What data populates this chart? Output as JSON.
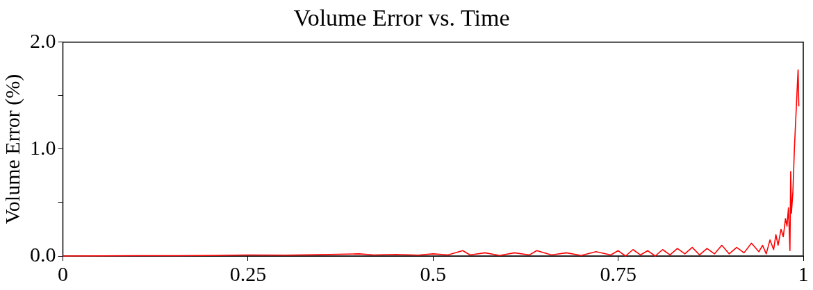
{
  "chart_data": {
    "type": "line",
    "title": "Volume Error vs. Time",
    "ylabel": "Volume Error (%)",
    "xlim": [
      0,
      1
    ],
    "xticks": [
      0,
      0.25,
      0.5,
      0.75,
      1
    ],
    "ylim": [
      0,
      2
    ],
    "yticks": [
      {
        "value": 0,
        "label": "0.0"
      },
      {
        "value": 0.5,
        "label": null
      },
      {
        "value": 1,
        "label": "1.0"
      },
      {
        "value": 1.5,
        "label": null
      },
      {
        "value": 2,
        "label": "2.0"
      }
    ],
    "grid": false,
    "legend": false,
    "marker": "none",
    "line_style": "solid",
    "series": [
      {
        "color": "#ff0000",
        "x": [
          0,
          0.05,
          0.1,
          0.15,
          0.2,
          0.25,
          0.3,
          0.35,
          0.4,
          0.42,
          0.45,
          0.48,
          0.5,
          0.52,
          0.54,
          0.55,
          0.57,
          0.59,
          0.61,
          0.63,
          0.64,
          0.66,
          0.68,
          0.7,
          0.72,
          0.74,
          0.75,
          0.76,
          0.77,
          0.78,
          0.79,
          0.8,
          0.81,
          0.82,
          0.83,
          0.84,
          0.85,
          0.86,
          0.87,
          0.88,
          0.89,
          0.9,
          0.91,
          0.92,
          0.93,
          0.94,
          0.945,
          0.95,
          0.955,
          0.96,
          0.963,
          0.966,
          0.97,
          0.973,
          0.976,
          0.978,
          0.98,
          0.982,
          0.983,
          0.984,
          0.986,
          0.988,
          0.99,
          0.992,
          0.993,
          0.994
        ],
        "values": [
          0,
          0.002,
          0.003,
          0.003,
          0.005,
          0.01,
          0.008,
          0.012,
          0.02,
          0.01,
          0.015,
          0.008,
          0.02,
          0.01,
          0.05,
          0.01,
          0.03,
          0.005,
          0.03,
          0.01,
          0.05,
          0.01,
          0.03,
          0.005,
          0.04,
          0.01,
          0.05,
          0,
          0.06,
          0.01,
          0.05,
          0,
          0.06,
          0.01,
          0.07,
          0.02,
          0.08,
          0.01,
          0.07,
          0.02,
          0.1,
          0.02,
          0.08,
          0.03,
          0.12,
          0.04,
          0.1,
          0.02,
          0.15,
          0.06,
          0.2,
          0.1,
          0.25,
          0.18,
          0.35,
          0.28,
          0.45,
          0.05,
          0.79,
          0.4,
          0.6,
          1.0,
          1.3,
          1.6,
          1.74,
          1.4
        ]
      }
    ]
  }
}
